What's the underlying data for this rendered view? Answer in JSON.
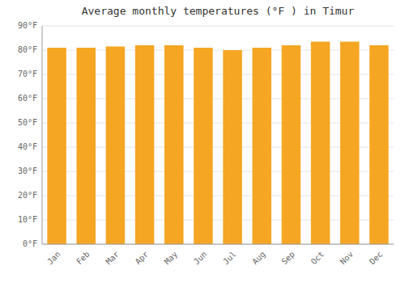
{
  "chart_data": {
    "type": "bar",
    "title": "Average monthly temperatures (°F ) in Timur",
    "categories": [
      "Jan",
      "Feb",
      "Mar",
      "Apr",
      "May",
      "Jun",
      "Jul",
      "Aug",
      "Sep",
      "Oct",
      "Nov",
      "Dec"
    ],
    "values": [
      81,
      81,
      81.5,
      82,
      82,
      81,
      80,
      81,
      82,
      83.5,
      83.5,
      82
    ],
    "color": "#F5A623",
    "ylim": [
      0,
      90
    ],
    "yticks": [
      {
        "value": 0,
        "label": "0°F"
      },
      {
        "value": 10,
        "label": "10°F"
      },
      {
        "value": 20,
        "label": "20°F"
      },
      {
        "value": 30,
        "label": "30°F"
      },
      {
        "value": 40,
        "label": "40°F"
      },
      {
        "value": 50,
        "label": "50°F"
      },
      {
        "value": 60,
        "label": "60°F"
      },
      {
        "value": 70,
        "label": "70°F"
      },
      {
        "value": 80,
        "label": "80°F"
      },
      {
        "value": 90,
        "label": "90°F"
      }
    ],
    "grid": true
  }
}
